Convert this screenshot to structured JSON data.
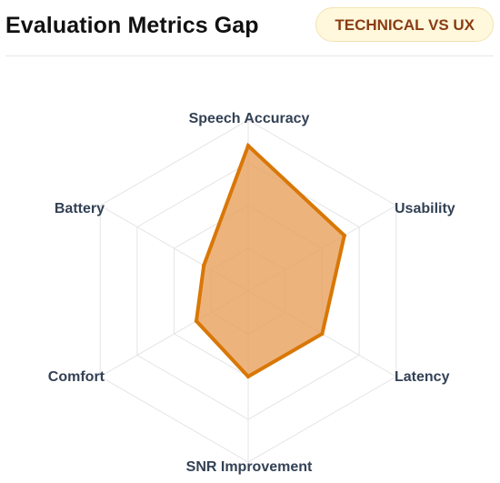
{
  "header": {
    "title": "Evaluation Metrics Gap",
    "badge": "TECHNICAL VS UX"
  },
  "colors": {
    "grid": "#e4e4e7",
    "series_stroke": "#d97706",
    "series_fill": "#e7a05d",
    "badge_bg": "#fff8dc",
    "badge_text": "#8a3c14",
    "label_text": "#334155"
  },
  "chart_data": {
    "type": "radar",
    "title": "Evaluation Metrics Gap",
    "categories": [
      "Speech Accuracy",
      "Usability",
      "Latency",
      "SNR Improvement",
      "Comfort",
      "Battery"
    ],
    "series": [
      {
        "values": [
          85,
          65,
          50,
          50,
          35,
          30
        ]
      }
    ],
    "rlim": [
      0,
      100
    ],
    "grid_levels": 4,
    "grid": true
  }
}
